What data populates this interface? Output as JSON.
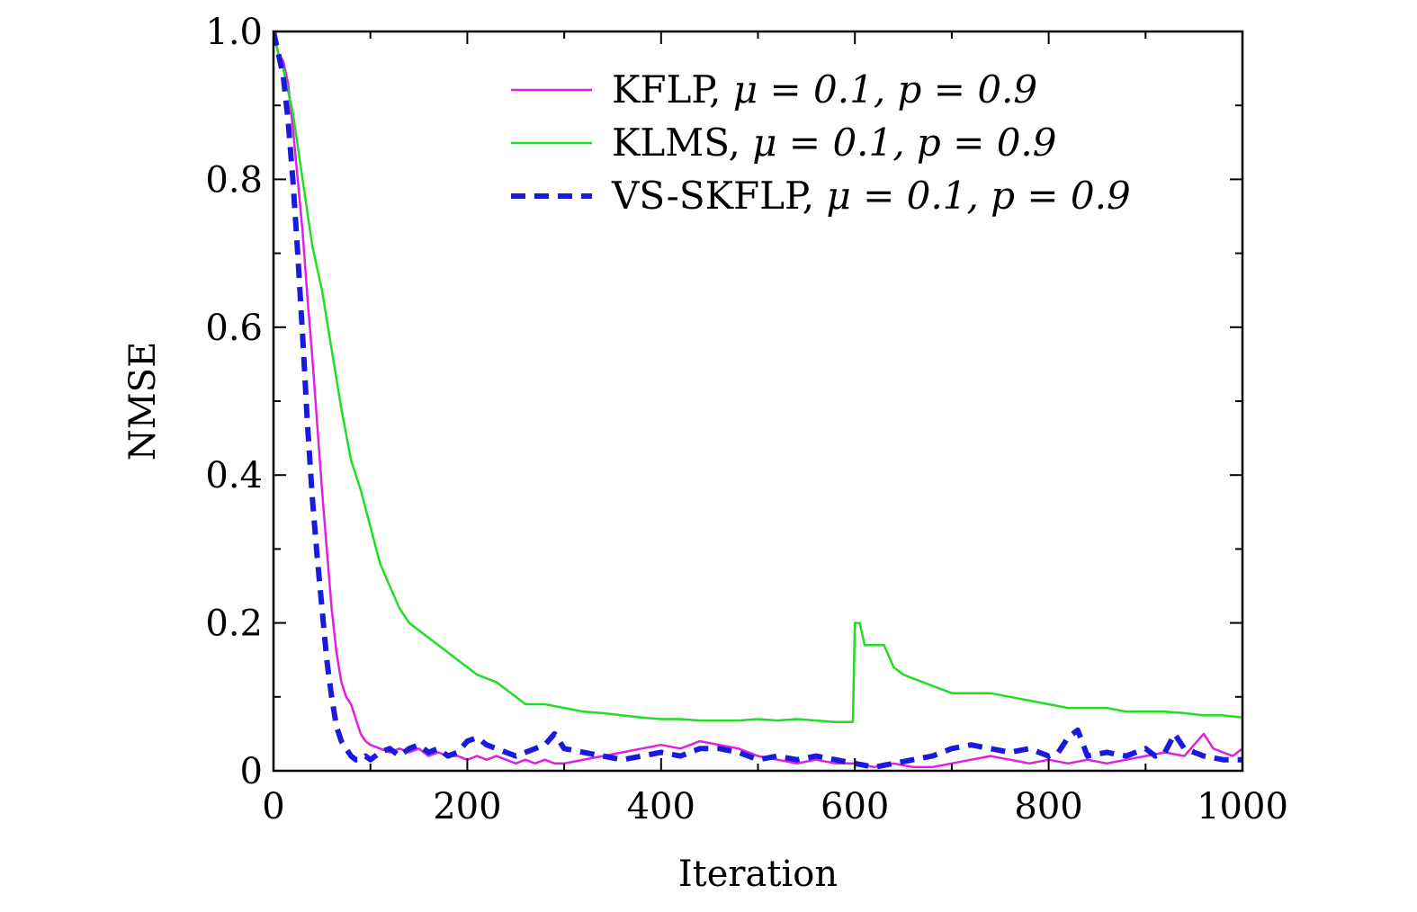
{
  "chart_data": {
    "type": "line",
    "title": "",
    "xlabel": "Iteration",
    "ylabel": "NMSE",
    "xlim": [
      0,
      1000
    ],
    "ylim": [
      0,
      1.0
    ],
    "xticks": [
      0,
      200,
      400,
      600,
      800,
      1000
    ],
    "xtick_labels": [
      "0",
      "200",
      "400",
      "600",
      "800",
      "1000"
    ],
    "yticks": [
      0,
      0.2,
      0.4,
      0.6,
      0.8,
      1.0
    ],
    "ytick_labels": [
      "0",
      "0.2",
      "0.4",
      "0.6",
      "0.8",
      "1.0"
    ],
    "grid": false,
    "legend_position": "top-right",
    "series": [
      {
        "name": "KFLP, μ = 0.1, p = 0.9",
        "legend_prefix": "KFLP, ",
        "legend_math": "μ = 0.1, p = 0.9",
        "color": "#e020e0",
        "dash": "solid",
        "x": [
          0,
          5,
          10,
          15,
          20,
          25,
          30,
          35,
          40,
          45,
          50,
          55,
          60,
          65,
          70,
          75,
          80,
          85,
          90,
          95,
          100,
          110,
          120,
          130,
          140,
          150,
          160,
          170,
          180,
          190,
          200,
          210,
          220,
          230,
          240,
          250,
          260,
          270,
          280,
          290,
          300,
          320,
          340,
          360,
          380,
          400,
          420,
          440,
          460,
          480,
          500,
          520,
          540,
          560,
          580,
          600,
          620,
          640,
          660,
          680,
          700,
          720,
          740,
          760,
          780,
          800,
          820,
          840,
          860,
          880,
          900,
          920,
          940,
          960,
          970,
          980,
          990,
          1000
        ],
        "y": [
          1.0,
          0.97,
          0.96,
          0.93,
          0.87,
          0.8,
          0.73,
          0.64,
          0.56,
          0.47,
          0.38,
          0.3,
          0.22,
          0.16,
          0.12,
          0.1,
          0.09,
          0.07,
          0.05,
          0.04,
          0.035,
          0.03,
          0.025,
          0.03,
          0.025,
          0.03,
          0.02,
          0.025,
          0.02,
          0.02,
          0.015,
          0.02,
          0.015,
          0.02,
          0.015,
          0.01,
          0.015,
          0.01,
          0.015,
          0.01,
          0.01,
          0.015,
          0.02,
          0.025,
          0.03,
          0.035,
          0.03,
          0.04,
          0.035,
          0.03,
          0.02,
          0.015,
          0.01,
          0.015,
          0.01,
          0.01,
          0.005,
          0.01,
          0.005,
          0.005,
          0.01,
          0.015,
          0.02,
          0.015,
          0.01,
          0.015,
          0.01,
          0.015,
          0.01,
          0.015,
          0.02,
          0.025,
          0.02,
          0.05,
          0.03,
          0.025,
          0.02,
          0.03
        ]
      },
      {
        "name": "KLMS, μ = 0.1, p = 0.9",
        "legend_prefix": "KLMS, ",
        "legend_math": "μ = 0.1, p = 0.9",
        "color": "#22dd22",
        "dash": "solid",
        "x": [
          0,
          5,
          10,
          20,
          30,
          40,
          50,
          60,
          70,
          80,
          90,
          100,
          110,
          120,
          130,
          140,
          150,
          160,
          170,
          180,
          190,
          200,
          210,
          220,
          230,
          240,
          250,
          260,
          280,
          300,
          320,
          340,
          360,
          380,
          400,
          420,
          440,
          460,
          480,
          500,
          520,
          540,
          560,
          580,
          598,
          600,
          605,
          610,
          620,
          630,
          640,
          650,
          660,
          670,
          680,
          690,
          700,
          720,
          740,
          760,
          780,
          800,
          820,
          840,
          860,
          880,
          900,
          920,
          940,
          960,
          980,
          1000
        ],
        "y": [
          1.0,
          0.97,
          0.95,
          0.89,
          0.8,
          0.71,
          0.65,
          0.57,
          0.49,
          0.42,
          0.38,
          0.33,
          0.28,
          0.25,
          0.22,
          0.2,
          0.19,
          0.18,
          0.17,
          0.16,
          0.15,
          0.14,
          0.13,
          0.125,
          0.12,
          0.11,
          0.1,
          0.09,
          0.09,
          0.085,
          0.08,
          0.078,
          0.075,
          0.072,
          0.07,
          0.07,
          0.068,
          0.068,
          0.068,
          0.07,
          0.068,
          0.07,
          0.068,
          0.066,
          0.066,
          0.2,
          0.2,
          0.17,
          0.17,
          0.17,
          0.14,
          0.13,
          0.125,
          0.12,
          0.115,
          0.11,
          0.105,
          0.105,
          0.105,
          0.1,
          0.095,
          0.09,
          0.085,
          0.085,
          0.085,
          0.08,
          0.08,
          0.08,
          0.078,
          0.075,
          0.075,
          0.072
        ]
      },
      {
        "name": "VS-SKFLP, μ = 0.1, p = 0.9",
        "legend_prefix": "VS-SKFLP, ",
        "legend_math": "μ = 0.1, p = 0.9",
        "color": "#1a1add",
        "dash": "dashed",
        "x": [
          0,
          5,
          10,
          15,
          20,
          25,
          30,
          35,
          40,
          45,
          50,
          55,
          60,
          65,
          70,
          75,
          80,
          85,
          90,
          95,
          100,
          110,
          120,
          130,
          140,
          150,
          160,
          170,
          180,
          190,
          200,
          210,
          220,
          230,
          240,
          250,
          260,
          270,
          280,
          290,
          300,
          320,
          340,
          360,
          380,
          400,
          420,
          440,
          460,
          480,
          500,
          520,
          540,
          560,
          580,
          600,
          620,
          640,
          660,
          680,
          700,
          720,
          740,
          760,
          780,
          800,
          810,
          820,
          830,
          840,
          860,
          880,
          900,
          910,
          920,
          930,
          940,
          960,
          980,
          1000
        ],
        "y": [
          1.0,
          0.97,
          0.94,
          0.88,
          0.8,
          0.7,
          0.59,
          0.47,
          0.37,
          0.29,
          0.22,
          0.15,
          0.1,
          0.06,
          0.04,
          0.03,
          0.02,
          0.015,
          0.015,
          0.02,
          0.015,
          0.025,
          0.03,
          0.02,
          0.03,
          0.035,
          0.025,
          0.03,
          0.02,
          0.025,
          0.04,
          0.045,
          0.035,
          0.03,
          0.025,
          0.02,
          0.025,
          0.03,
          0.035,
          0.05,
          0.03,
          0.025,
          0.02,
          0.015,
          0.02,
          0.025,
          0.02,
          0.03,
          0.03,
          0.025,
          0.015,
          0.02,
          0.015,
          0.02,
          0.015,
          0.01,
          0.005,
          0.01,
          0.015,
          0.02,
          0.03,
          0.035,
          0.03,
          0.025,
          0.03,
          0.02,
          0.025,
          0.045,
          0.055,
          0.02,
          0.025,
          0.02,
          0.03,
          0.02,
          0.025,
          0.05,
          0.03,
          0.02,
          0.015,
          0.015
        ]
      }
    ]
  }
}
